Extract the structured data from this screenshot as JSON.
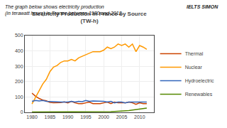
{
  "chart_data": {
    "type": "line",
    "title": "Electricity Production in France by Source",
    "subtitle": "(TW-h)",
    "annotations": [
      {
        "text": "The graph below shows electricity production\n(in terawatt hours) in France between 1980 and 2012."
      },
      {
        "text": "IELTS SIMON"
      }
    ],
    "x": [
      1980,
      1981,
      1982,
      1983,
      1984,
      1985,
      1986,
      1987,
      1988,
      1989,
      1990,
      1991,
      1992,
      1993,
      1994,
      1995,
      1996,
      1997,
      1998,
      1999,
      2000,
      2001,
      2002,
      2003,
      2004,
      2005,
      2006,
      2007,
      2008,
      2009,
      2010,
      2011,
      2012
    ],
    "series": [
      {
        "name": "Thermal",
        "color": "#cc4400",
        "values": [
          125,
          105,
          90,
          80,
          75,
          65,
          62,
          62,
          64,
          68,
          62,
          72,
          62,
          57,
          57,
          62,
          67,
          57,
          57,
          57,
          62,
          67,
          57,
          67,
          62,
          62,
          62,
          67,
          62,
          52,
          62,
          57,
          57
        ]
      },
      {
        "name": "Nuclear",
        "color": "#ff9900",
        "values": [
          55,
          100,
          145,
          185,
          215,
          265,
          295,
          305,
          325,
          335,
          335,
          345,
          335,
          355,
          365,
          375,
          385,
          395,
          395,
          395,
          405,
          425,
          415,
          425,
          445,
          435,
          445,
          425,
          445,
          395,
          435,
          425,
          410
        ]
      },
      {
        "name": "Hydroelectric",
        "color": "#3366bb",
        "values": [
          72,
          78,
          74,
          77,
          72,
          70,
          70,
          67,
          67,
          67,
          67,
          72,
          67,
          72,
          70,
          77,
          72,
          74,
          74,
          74,
          72,
          67,
          72,
          62,
          67,
          67,
          62,
          67,
          67,
          70,
          70,
          67,
          67
        ]
      },
      {
        "name": "Renewables",
        "color": "#558800",
        "values": [
          2,
          2,
          2,
          2,
          2,
          2,
          2,
          2,
          2,
          2,
          2,
          2,
          3,
          3,
          3,
          3,
          3,
          3,
          4,
          4,
          4,
          5,
          5,
          6,
          7,
          8,
          10,
          12,
          15,
          18,
          22,
          25,
          28
        ]
      }
    ],
    "xlim": [
      1978,
      2014
    ],
    "xticks": [
      1980,
      1985,
      1990,
      1995,
      2000,
      2005,
      2010
    ],
    "ylim": [
      0,
      500
    ],
    "yticks": [
      0,
      100,
      200,
      300,
      400,
      500
    ],
    "grid": true,
    "legend": "right"
  }
}
